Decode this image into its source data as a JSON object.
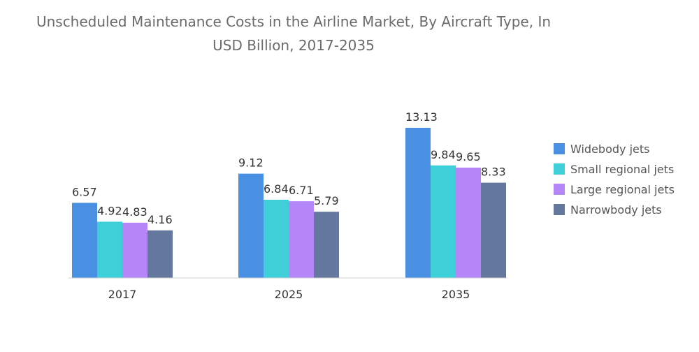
{
  "chart_data": {
    "type": "bar",
    "title": "Unscheduled Maintenance Costs in the Airline Market, By Aircraft Type, In USD Billion, 2017-2035",
    "categories": [
      "2017",
      "2025",
      "2035"
    ],
    "series": [
      {
        "name": "Widebody jets",
        "color": "#4a90e2",
        "values": [
          6.57,
          9.12,
          13.13
        ]
      },
      {
        "name": "Small regional jets",
        "color": "#3ecfd9",
        "values": [
          4.92,
          6.84,
          9.84
        ]
      },
      {
        "name": "Large regional jets",
        "color": "#b586f7",
        "values": [
          4.83,
          6.71,
          9.65
        ]
      },
      {
        "name": "Narrowbody jets",
        "color": "#64779c",
        "values": [
          4.16,
          5.79,
          8.33
        ]
      }
    ],
    "xlabel": "",
    "ylabel": "",
    "ylim": [
      0,
      13.13
    ],
    "grid": false,
    "legend_position": "right"
  }
}
